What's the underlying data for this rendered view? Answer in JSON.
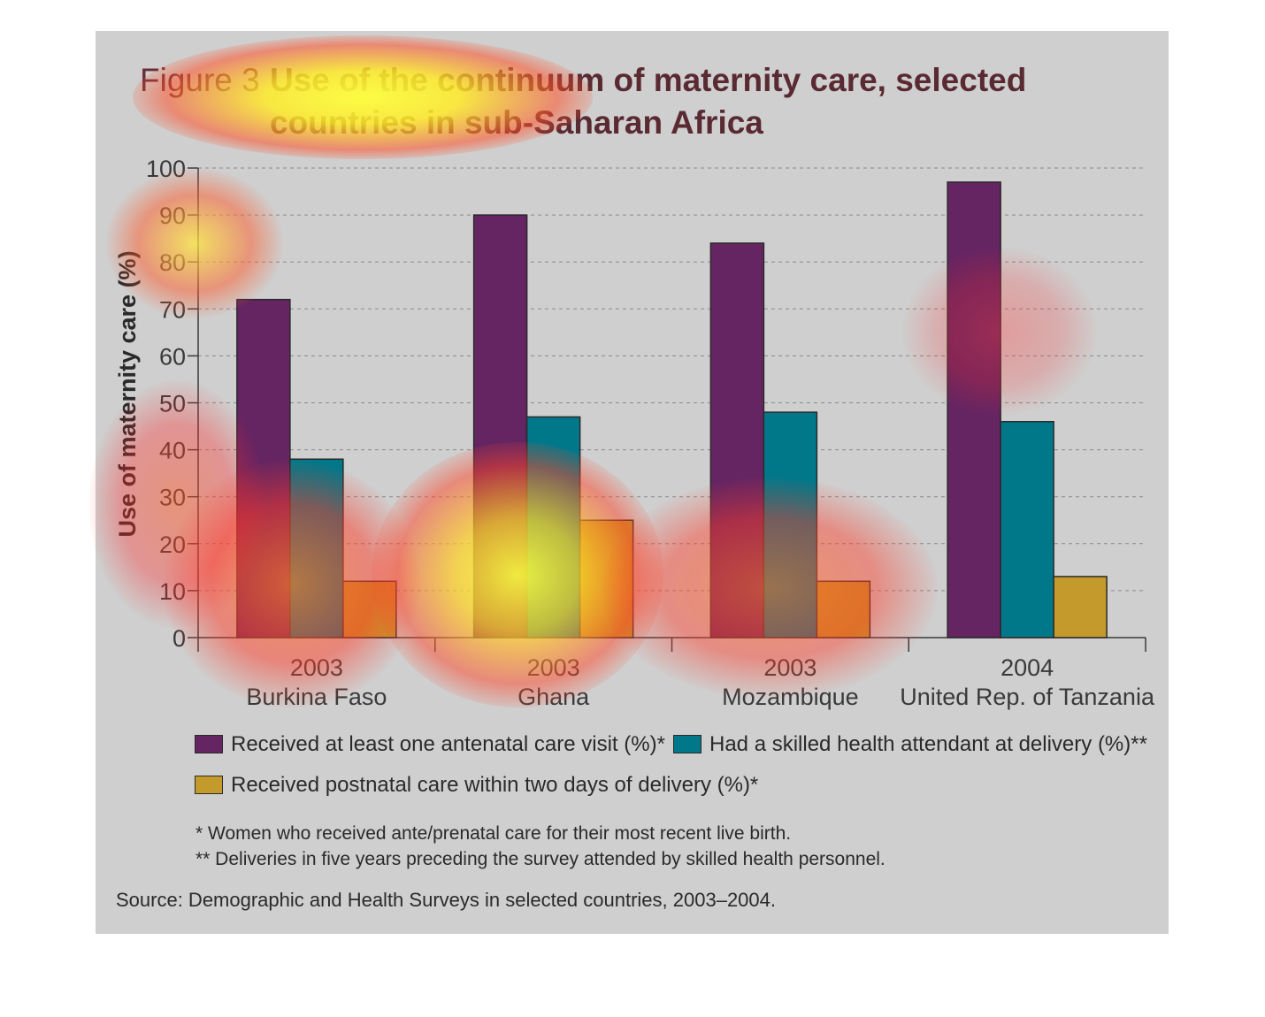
{
  "figure": {
    "label": "Figure 3",
    "title": "Use of the continuum of maternity care, selected countries in sub-Saharan Africa"
  },
  "chart_data": {
    "type": "bar",
    "title": "Use of the continuum of maternity care, selected countries in sub-Saharan Africa",
    "ylabel": "Use of maternity care (%)",
    "xlabel": "",
    "ylim": [
      0,
      100
    ],
    "yticks": [
      0,
      10,
      20,
      30,
      40,
      50,
      60,
      70,
      80,
      90,
      100
    ],
    "grid": true,
    "legend_position": "bottom",
    "categories": [
      {
        "year": "2003",
        "country": "Burkina Faso"
      },
      {
        "year": "2003",
        "country": "Ghana"
      },
      {
        "year": "2003",
        "country": "Mozambique"
      },
      {
        "year": "2004",
        "country": "United Rep. of Tanzania"
      }
    ],
    "series": [
      {
        "name": "Received at least one antenatal care visit (%)*",
        "color": "#652562",
        "values": [
          72,
          90,
          84,
          97
        ]
      },
      {
        "name": "Had a skilled health attendant at delivery (%)**",
        "color": "#00788a",
        "values": [
          38,
          47,
          48,
          46
        ]
      },
      {
        "name": "Received postnatal care within two days of delivery (%)*",
        "color": "#c49a2c",
        "values": [
          12,
          25,
          12,
          13
        ]
      }
    ]
  },
  "notes": [
    "* Women who received ante/prenatal care for their most recent live birth.",
    "** Deliveries in five years preceding the survey attended by skilled health personnel."
  ],
  "source": "Source: Demographic and Health Surveys in selected countries, 2003–2004."
}
